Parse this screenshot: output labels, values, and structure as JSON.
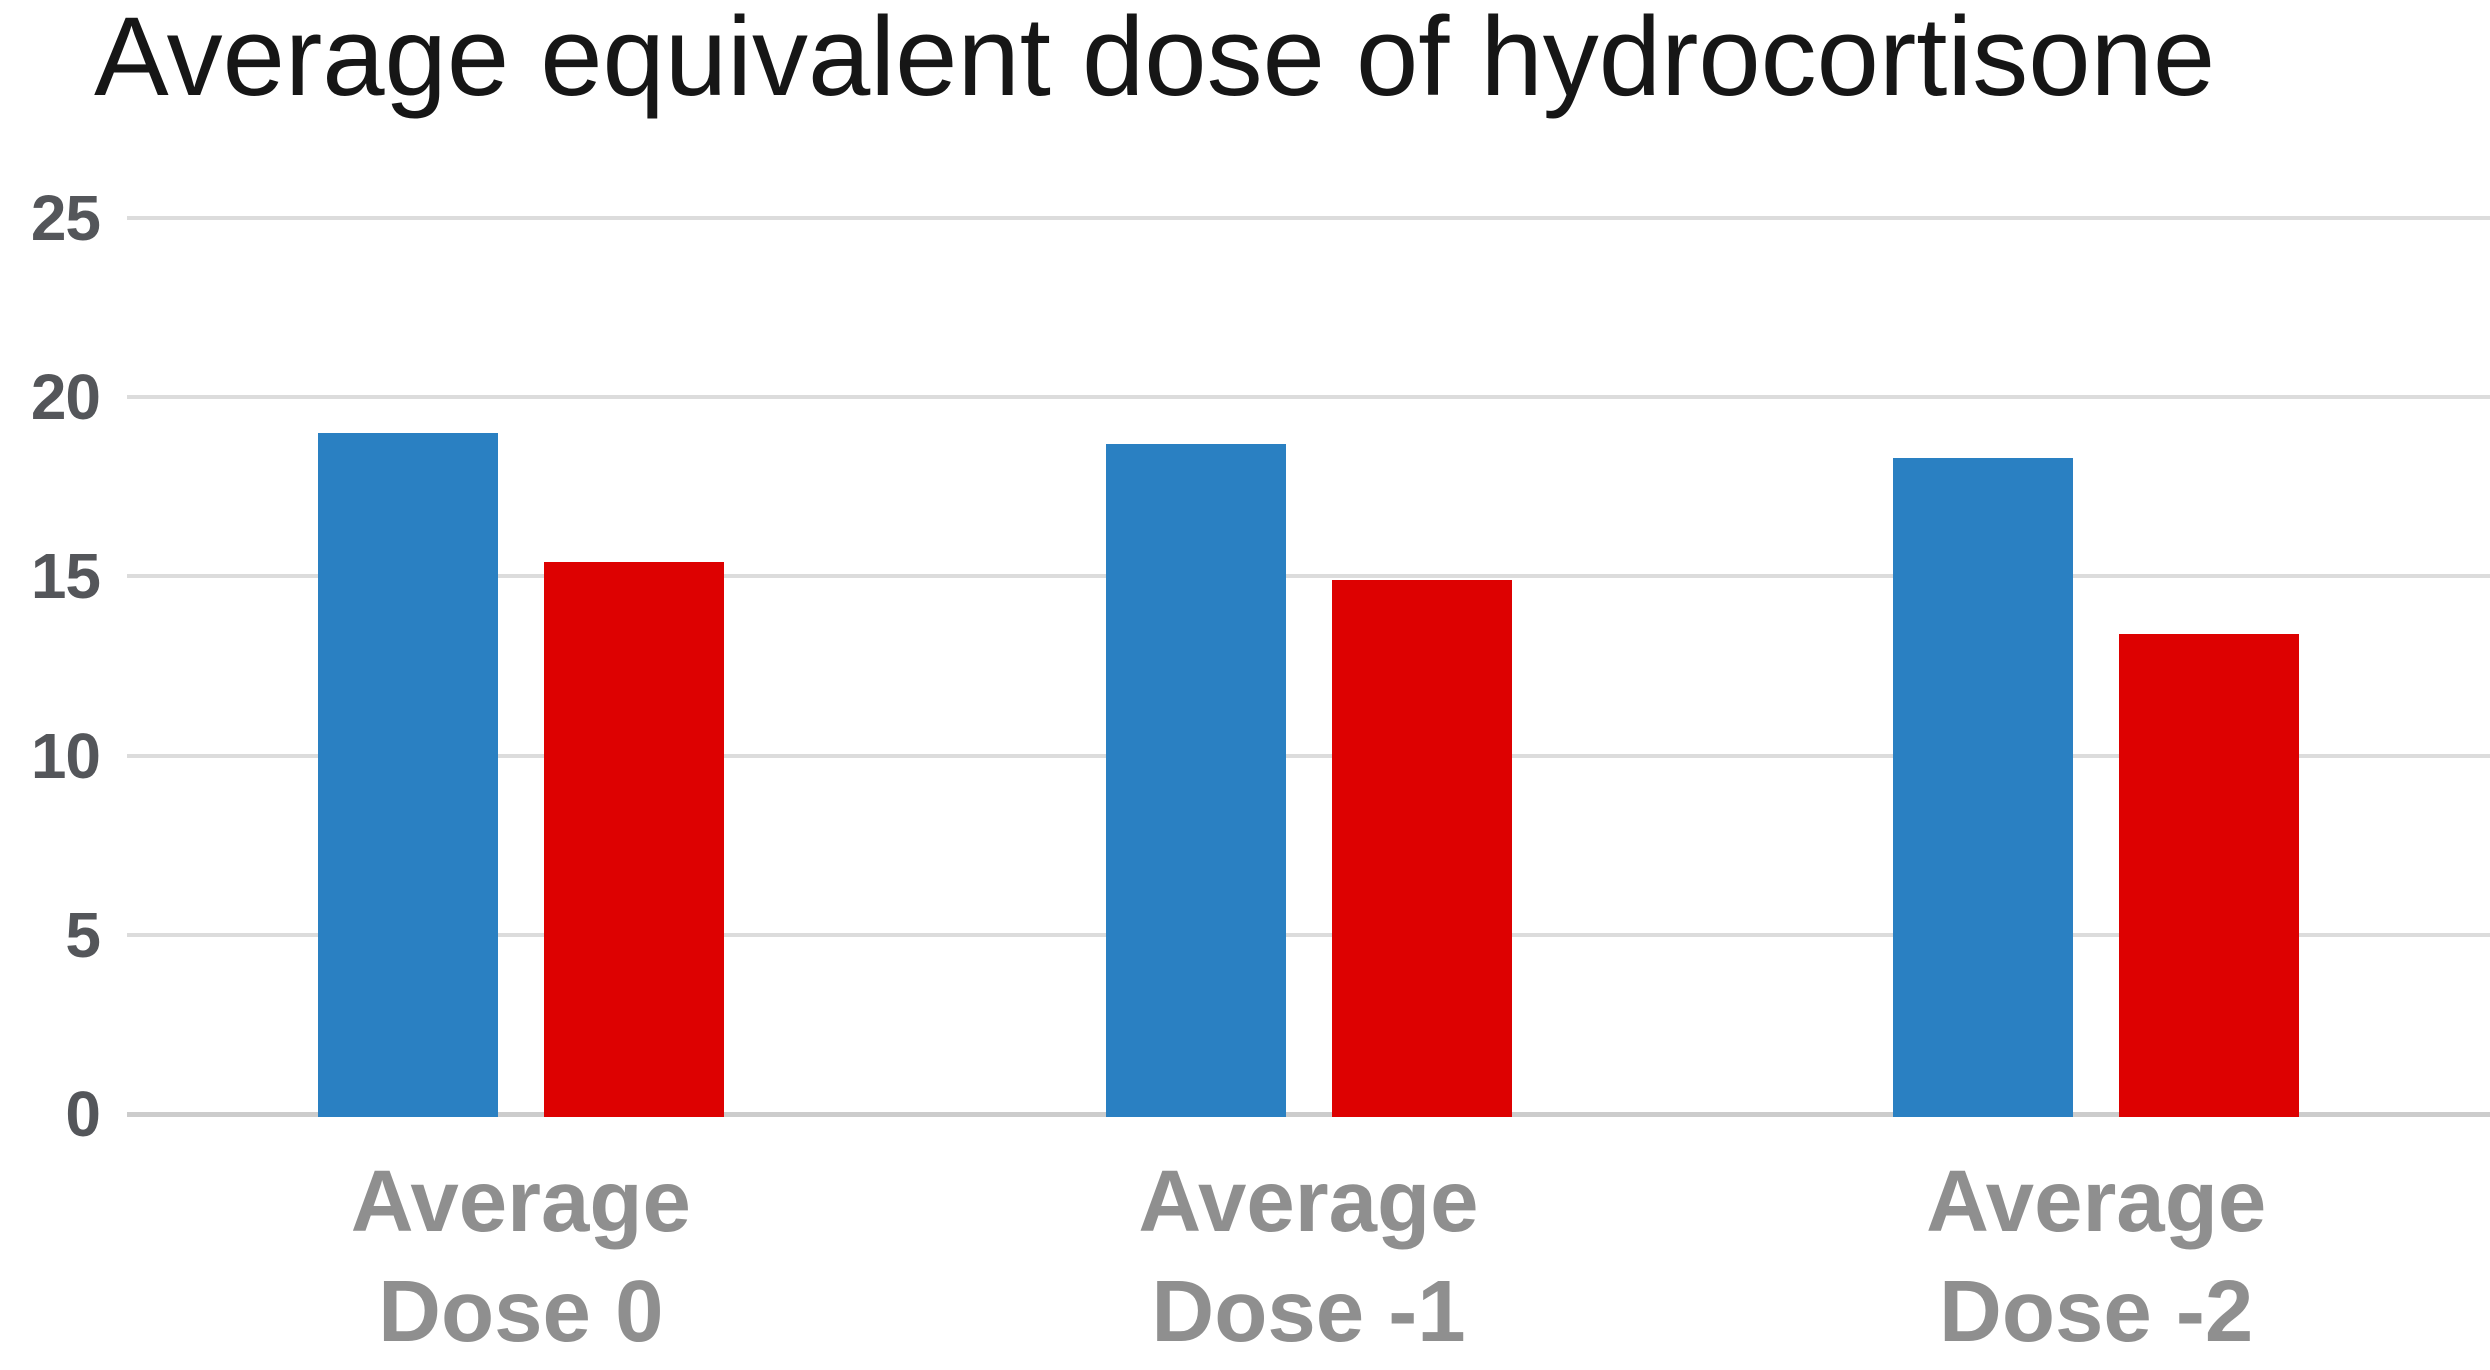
{
  "chart_data": {
    "type": "bar",
    "title": "Average equivalent dose of hydrocortisone",
    "categories": [
      "Average Dose 0",
      "Average Dose -1",
      "Average Dose -2"
    ],
    "category_lines": [
      [
        "Average",
        "Dose 0"
      ],
      [
        "Average",
        "Dose -1"
      ],
      [
        "Average",
        "Dose -2"
      ]
    ],
    "series": [
      {
        "name": "blue-series",
        "color": "#2A80C2",
        "values": [
          19.0,
          18.7,
          18.3
        ]
      },
      {
        "name": "red-series",
        "color": "#DD0101",
        "values": [
          15.4,
          14.9,
          13.4
        ]
      }
    ],
    "xlabel": "",
    "ylabel": "",
    "ylim": [
      0,
      25
    ],
    "ytick_values": [
      0,
      5,
      10,
      15,
      20,
      25
    ],
    "ytick_labels": [
      "0",
      "5",
      "10",
      "15",
      "20",
      "25"
    ],
    "grid": true,
    "legend": false
  },
  "colors": {
    "title_text": "#161616",
    "gridline": "#DCDCDC",
    "axis_line": "#CCCCCC",
    "ytick_text": "#54565A",
    "xlabel_text": "#8F8F8F",
    "background": "#FFFFFF"
  }
}
